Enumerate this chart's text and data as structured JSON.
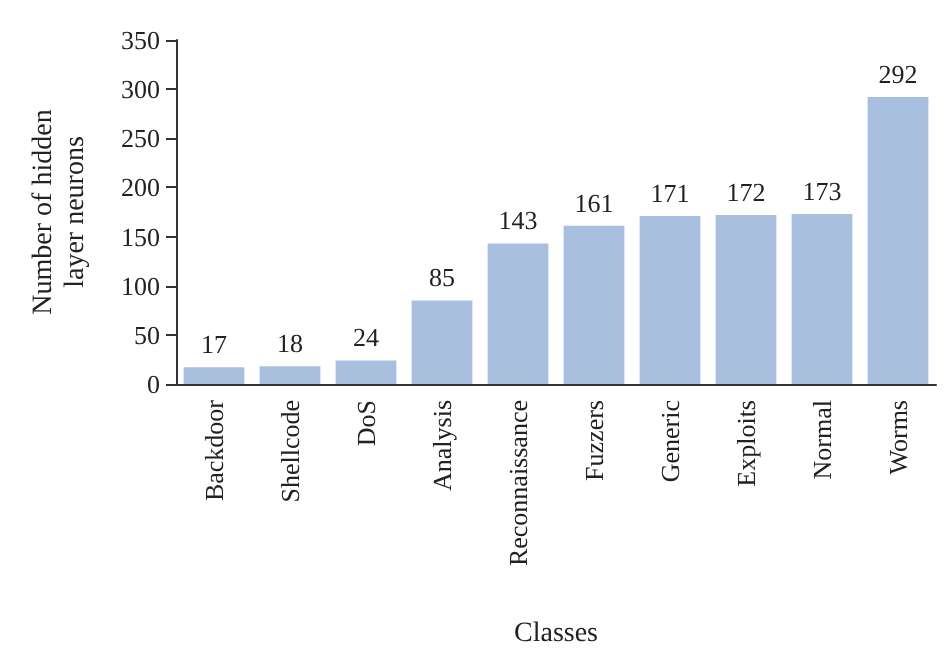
{
  "chart_data": {
    "type": "bar",
    "xlabel": "Classes",
    "ylabel": "Number of hidden\nlayer neurons",
    "categories": [
      "Backdoor",
      "Shellcode",
      "DoS",
      "Analysis",
      "Reconnaissance",
      "Fuzzers",
      "Generic",
      "Exploits",
      "Normal",
      "Worms"
    ],
    "values": [
      17,
      18,
      24,
      85,
      143,
      161,
      171,
      172,
      173,
      292
    ],
    "color": "#a9bfdf",
    "ylim": [
      0,
      350
    ],
    "yticks": [
      0,
      50,
      100,
      150,
      200,
      250,
      300,
      350
    ],
    "grid": false,
    "data_labels": true
  }
}
